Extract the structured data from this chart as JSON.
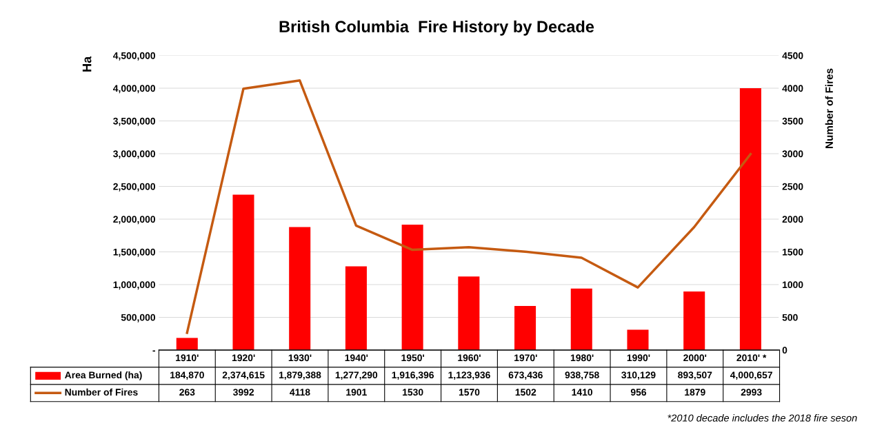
{
  "chart_data": {
    "type": "bar",
    "title": "British Columbia  Fire History by Decade",
    "categories": [
      "1910'",
      "1920'",
      "1930'",
      "1940'",
      "1950'",
      "1960'",
      "1970'",
      "1980'",
      "1990'",
      "2000'",
      "2010' *"
    ],
    "series": [
      {
        "name": "Area Burned (ha)",
        "color": "#ff0000",
        "values": [
          184870,
          2374615,
          1879388,
          1277290,
          1916396,
          1123936,
          673436,
          938758,
          310129,
          893507,
          4000657
        ],
        "value_labels": [
          "184,870",
          "2,374,615",
          "1,879,388",
          "1,277,290",
          "1,916,396",
          "1,123,936",
          "673,436",
          "938,758",
          "310,129",
          "893,507",
          "4,000,657"
        ]
      },
      {
        "name": "Number of Fires",
        "type": "line",
        "axis": "y2",
        "color": "#c55a11",
        "values": [
          263,
          3992,
          4118,
          1901,
          1530,
          1570,
          1502,
          1410,
          956,
          1879,
          2993
        ]
      }
    ],
    "ylabel": "Ha",
    "y2label": "Number of Fires",
    "ylim": [
      0,
      4500000
    ],
    "yticks": [
      {
        "value": 0,
        "label": "-"
      },
      {
        "value": 500000,
        "label": "500,000"
      },
      {
        "value": 1000000,
        "label": "1,000,000"
      },
      {
        "value": 1500000,
        "label": "1,500,000"
      },
      {
        "value": 2000000,
        "label": "2,000,000"
      },
      {
        "value": 2500000,
        "label": "2,500,000"
      },
      {
        "value": 3000000,
        "label": "3,000,000"
      },
      {
        "value": 3500000,
        "label": "3,500,000"
      },
      {
        "value": 4000000,
        "label": "4,000,000"
      },
      {
        "value": 4500000,
        "label": "4,500,000"
      }
    ],
    "y2lim": [
      0,
      4500
    ],
    "y2ticks": [
      0,
      500,
      1000,
      1500,
      2000,
      2500,
      3000,
      3500,
      4000,
      4500
    ],
    "grid": "y",
    "legend": "bottom",
    "data_labels": true,
    "marker": "none",
    "line_style": "solid",
    "annotations": [
      "*2010 decade includes the 2018 fire seson"
    ]
  }
}
